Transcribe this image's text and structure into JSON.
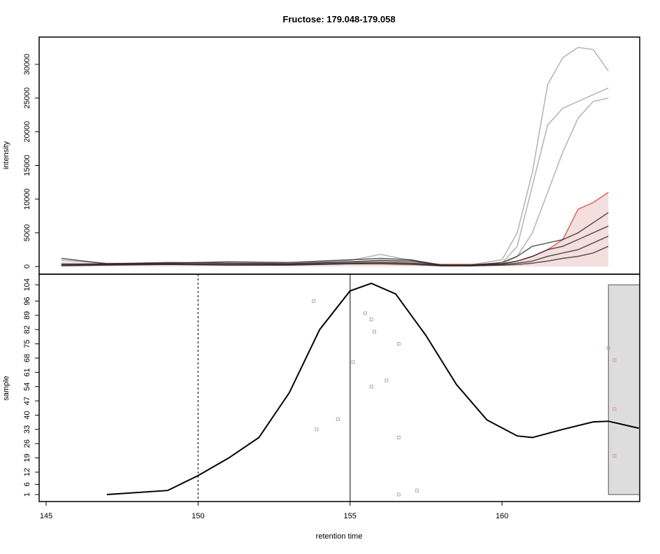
{
  "chart_data": [
    {
      "type": "line",
      "title": "Fructose: 179.048-179.058",
      "ylabel": "intensity",
      "xlim": [
        144.77,
        164.53
      ],
      "ylim": [
        -1142,
        34048
      ],
      "yticks": [
        0,
        5000,
        10000,
        15000,
        20000,
        25000,
        30000
      ],
      "x": [
        145.5,
        147,
        149,
        151,
        153,
        155,
        156,
        157,
        158,
        159,
        160,
        160.5,
        161,
        161.5,
        162,
        162.5,
        163,
        163.5
      ],
      "series": [
        {
          "color": "#9a9a9a",
          "values": [
            900,
            500,
            400,
            500,
            400,
            600,
            700,
            500,
            300,
            300,
            1000,
            5000,
            14000,
            27000,
            31000,
            32500,
            32200,
            29000
          ]
        },
        {
          "color": "#9a9a9a",
          "values": [
            500,
            400,
            400,
            500,
            500,
            700,
            900,
            600,
            300,
            300,
            500,
            3000,
            12000,
            21000,
            23500,
            24500,
            25500,
            26500
          ]
        },
        {
          "color": "#9a9a9a",
          "values": [
            400,
            300,
            300,
            400,
            500,
            900,
            1800,
            900,
            300,
            300,
            400,
            1500,
            5000,
            11000,
            17000,
            22000,
            24500,
            25000
          ]
        },
        {
          "color": "#cc3333",
          "fill": "#f3d6d6",
          "values": [
            300,
            300,
            300,
            300,
            300,
            400,
            500,
            400,
            300,
            300,
            400,
            800,
            1500,
            2500,
            4000,
            8500,
            9500,
            11000
          ]
        },
        {
          "color": "#222222",
          "values": [
            1200,
            400,
            500,
            700,
            600,
            1000,
            1200,
            1000,
            200,
            200,
            600,
            1500,
            3000,
            3500,
            4000,
            5000,
            6500,
            8000
          ]
        },
        {
          "color": "#222222",
          "values": [
            300,
            400,
            600,
            500,
            400,
            700,
            900,
            800,
            200,
            200,
            400,
            800,
            1500,
            2500,
            3000,
            4000,
            5000,
            6000
          ]
        },
        {
          "color": "#222222",
          "values": [
            200,
            300,
            400,
            300,
            300,
            500,
            600,
            500,
            100,
            100,
            300,
            500,
            800,
            1500,
            2000,
            2500,
            3500,
            4500
          ]
        },
        {
          "color": "#222222",
          "values": [
            100,
            200,
            300,
            200,
            200,
            400,
            400,
            300,
            100,
            100,
            200,
            300,
            500,
            800,
            1200,
            1500,
            2000,
            3000
          ]
        }
      ]
    },
    {
      "type": "scatter",
      "ylabel": "sample",
      "xlabel": "retention time",
      "xlim": [
        144.77,
        164.53
      ],
      "ylim": [
        -2.43,
        109.2
      ],
      "xticks": [
        145,
        150,
        155,
        160
      ],
      "yticks": [
        1,
        6,
        12,
        19,
        26,
        33,
        40,
        47,
        54,
        61,
        68,
        75,
        82,
        89,
        96,
        104
      ],
      "vlines": [
        {
          "value": 150,
          "style": "dotted"
        },
        {
          "value": 155,
          "style": "solid"
        }
      ],
      "band": {
        "xlim": [
          163.5,
          164.53
        ],
        "ylim": [
          1,
          104
        ],
        "color": "#dddddd"
      },
      "curve": {
        "color": "#000000",
        "x": [
          147,
          149,
          150,
          151,
          152,
          153,
          154,
          155,
          155.7,
          156.5,
          157.5,
          158.5,
          159.5,
          160.5,
          161,
          162,
          163,
          163.5,
          164.5
        ],
        "values": [
          1,
          3,
          10.3,
          18.9,
          29,
          51,
          82,
          101,
          104.7,
          99.5,
          79,
          55,
          37.7,
          29.8,
          29,
          33,
          36.7,
          37,
          33.6
        ]
      },
      "series": [
        {
          "color": "#aaaaaa",
          "x": [
            153.8,
            155.5,
            155.7,
            155.8,
            156.6,
            155.1,
            156.2,
            155.7,
            154.6,
            153.9,
            156.6,
            157.2,
            156.6
          ],
          "values": [
            96,
            90,
            87,
            81,
            75,
            66,
            57,
            54,
            38,
            33,
            29,
            3,
            1
          ]
        },
        {
          "color": "#d99a9a",
          "x": [
            163.5,
            163.7,
            163.7,
            163.7
          ],
          "values": [
            73,
            67,
            43,
            20
          ]
        }
      ]
    }
  ]
}
